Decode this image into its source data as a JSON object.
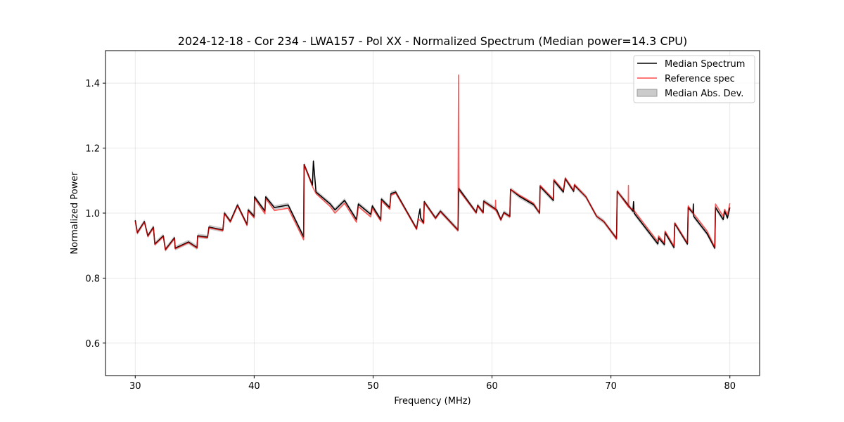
{
  "chart_data": {
    "type": "line",
    "title": "2024-12-18 - Cor 234 - LWA157 - Pol XX - Normalized Spectrum (Median power=14.3 CPU)",
    "xlabel": "Frequency (MHz)",
    "ylabel": "Normalized Power",
    "xlim": [
      27.5,
      82.5
    ],
    "ylim": [
      0.5,
      1.5
    ],
    "xticks": [
      30,
      40,
      50,
      60,
      70,
      80
    ],
    "xtick_labels": [
      "30",
      "40",
      "50",
      "60",
      "70",
      "80"
    ],
    "yticks": [
      0.6,
      0.8,
      1.0,
      1.2,
      1.4
    ],
    "ytick_labels": [
      "0.6",
      "0.8",
      "1.0",
      "1.2",
      "1.4"
    ],
    "grid": true,
    "legend": {
      "placement": "top-right",
      "entries": [
        "Median Spectrum",
        "Reference spec",
        "Median Abs. Dev."
      ]
    },
    "colors": {
      "median": "#000000",
      "reference": "#ff0000",
      "mad": "#a0a0a0"
    },
    "mad_halfwidth": 0.007,
    "series": [
      {
        "name": "Median Spectrum",
        "points": [
          [
            30.0,
            0.978
          ],
          [
            30.18,
            0.94
          ],
          [
            30.77,
            0.974
          ],
          [
            31.06,
            0.93
          ],
          [
            31.53,
            0.957
          ],
          [
            31.65,
            0.905
          ],
          [
            32.36,
            0.93
          ],
          [
            32.54,
            0.888
          ],
          [
            33.3,
            0.924
          ],
          [
            33.36,
            0.892
          ],
          [
            34.48,
            0.911
          ],
          [
            35.2,
            0.894
          ],
          [
            35.25,
            0.93
          ],
          [
            36.08,
            0.926
          ],
          [
            36.2,
            0.957
          ],
          [
            37.37,
            0.948
          ],
          [
            37.5,
            1.0
          ],
          [
            38.0,
            0.975
          ],
          [
            38.6,
            1.025
          ],
          [
            39.4,
            0.965
          ],
          [
            39.5,
            1.01
          ],
          [
            40.0,
            0.99
          ],
          [
            40.03,
            1.05
          ],
          [
            40.9,
            1.006
          ],
          [
            40.97,
            1.05
          ],
          [
            41.7,
            1.017
          ],
          [
            42.86,
            1.025
          ],
          [
            44.16,
            0.927
          ],
          [
            44.2,
            1.15
          ],
          [
            44.9,
            1.086
          ],
          [
            44.98,
            1.16
          ],
          [
            45.2,
            1.065
          ],
          [
            46.4,
            1.028
          ],
          [
            46.8,
            1.01
          ],
          [
            47.6,
            1.039
          ],
          [
            48.6,
            0.98
          ],
          [
            48.76,
            1.028
          ],
          [
            49.8,
            0.996
          ],
          [
            49.94,
            1.022
          ],
          [
            50.65,
            0.98
          ],
          [
            50.7,
            1.043
          ],
          [
            51.4,
            1.017
          ],
          [
            51.5,
            1.06
          ],
          [
            51.9,
            1.065
          ],
          [
            53.66,
            0.952
          ],
          [
            53.8,
            0.985
          ],
          [
            53.95,
            1.013
          ],
          [
            54.0,
            0.985
          ],
          [
            54.25,
            0.97
          ],
          [
            54.3,
            1.035
          ],
          [
            55.25,
            0.985
          ],
          [
            55.66,
            1.006
          ],
          [
            57.14,
            0.948
          ],
          [
            57.2,
            1.076
          ],
          [
            58.67,
            1.002
          ],
          [
            58.79,
            1.024
          ],
          [
            59.26,
            1.002
          ],
          [
            59.3,
            1.037
          ],
          [
            60.4,
            1.01
          ],
          [
            60.74,
            0.98
          ],
          [
            61.0,
            1.002
          ],
          [
            61.5,
            0.99
          ],
          [
            61.56,
            1.073
          ],
          [
            62.3,
            1.052
          ],
          [
            63.5,
            1.026
          ],
          [
            64.0,
            1.0
          ],
          [
            64.04,
            1.082
          ],
          [
            65.16,
            1.039
          ],
          [
            65.2,
            1.1
          ],
          [
            66.0,
            1.065
          ],
          [
            66.16,
            1.106
          ],
          [
            66.87,
            1.067
          ],
          [
            66.93,
            1.086
          ],
          [
            67.9,
            1.05
          ],
          [
            68.8,
            0.99
          ],
          [
            69.4,
            0.974
          ],
          [
            70.47,
            0.922
          ],
          [
            70.53,
            1.067
          ],
          [
            71.85,
            1.006
          ],
          [
            71.9,
            1.035
          ],
          [
            71.95,
            1.0
          ],
          [
            73.95,
            0.905
          ],
          [
            74.0,
            0.924
          ],
          [
            74.5,
            0.903
          ],
          [
            74.55,
            0.94
          ],
          [
            75.3,
            0.894
          ],
          [
            75.37,
            0.968
          ],
          [
            76.43,
            0.905
          ],
          [
            76.5,
            1.017
          ],
          [
            76.9,
            1.0
          ],
          [
            76.93,
            1.028
          ],
          [
            76.96,
            0.99
          ],
          [
            78.08,
            0.937
          ],
          [
            78.73,
            0.892
          ],
          [
            78.79,
            1.017
          ],
          [
            79.44,
            0.98
          ],
          [
            79.56,
            1.006
          ],
          [
            79.8,
            0.985
          ],
          [
            80.0,
            1.017
          ]
        ]
      },
      {
        "name": "Reference spec",
        "points": [
          [
            30.0,
            0.975
          ],
          [
            30.18,
            0.938
          ],
          [
            30.77,
            0.972
          ],
          [
            31.06,
            0.928
          ],
          [
            31.53,
            0.955
          ],
          [
            31.65,
            0.903
          ],
          [
            32.36,
            0.928
          ],
          [
            32.54,
            0.886
          ],
          [
            33.3,
            0.922
          ],
          [
            33.36,
            0.89
          ],
          [
            34.48,
            0.909
          ],
          [
            35.2,
            0.892
          ],
          [
            35.25,
            0.928
          ],
          [
            36.08,
            0.924
          ],
          [
            36.2,
            0.955
          ],
          [
            37.37,
            0.946
          ],
          [
            37.5,
            0.998
          ],
          [
            38.0,
            0.972
          ],
          [
            38.6,
            1.022
          ],
          [
            39.4,
            0.962
          ],
          [
            39.5,
            1.006
          ],
          [
            40.0,
            0.985
          ],
          [
            40.03,
            1.045
          ],
          [
            40.9,
            0.998
          ],
          [
            40.97,
            1.045
          ],
          [
            41.7,
            1.008
          ],
          [
            42.86,
            1.015
          ],
          [
            44.16,
            0.918
          ],
          [
            44.2,
            1.148
          ],
          [
            44.9,
            1.082
          ],
          [
            45.2,
            1.06
          ],
          [
            46.4,
            1.02
          ],
          [
            46.8,
            1.0
          ],
          [
            47.6,
            1.03
          ],
          [
            48.6,
            0.972
          ],
          [
            48.76,
            1.02
          ],
          [
            49.8,
            0.988
          ],
          [
            49.94,
            1.015
          ],
          [
            50.65,
            0.975
          ],
          [
            50.7,
            1.038
          ],
          [
            51.4,
            1.012
          ],
          [
            51.5,
            1.055
          ],
          [
            51.9,
            1.062
          ],
          [
            53.66,
            0.95
          ],
          [
            53.8,
            0.982
          ],
          [
            54.25,
            0.968
          ],
          [
            54.3,
            1.033
          ],
          [
            55.25,
            0.983
          ],
          [
            55.66,
            1.004
          ],
          [
            57.14,
            0.946
          ],
          [
            57.18,
            1.425
          ],
          [
            57.22,
            1.07
          ],
          [
            58.67,
            1.0
          ],
          [
            58.79,
            1.022
          ],
          [
            59.26,
            1.0
          ],
          [
            59.3,
            1.035
          ],
          [
            60.28,
            1.01
          ],
          [
            60.3,
            1.04
          ],
          [
            60.32,
            1.008
          ],
          [
            60.74,
            0.978
          ],
          [
            61.0,
            1.0
          ],
          [
            61.5,
            0.988
          ],
          [
            61.56,
            1.073
          ],
          [
            62.3,
            1.055
          ],
          [
            63.5,
            1.03
          ],
          [
            64.0,
            1.0
          ],
          [
            64.04,
            1.085
          ],
          [
            65.16,
            1.043
          ],
          [
            65.2,
            1.104
          ],
          [
            66.0,
            1.07
          ],
          [
            66.16,
            1.108
          ],
          [
            66.87,
            1.07
          ],
          [
            66.93,
            1.088
          ],
          [
            67.9,
            1.05
          ],
          [
            68.8,
            0.99
          ],
          [
            69.4,
            0.974
          ],
          [
            70.47,
            0.92
          ],
          [
            70.53,
            1.068
          ],
          [
            71.45,
            1.02
          ],
          [
            71.47,
            1.085
          ],
          [
            71.49,
            1.018
          ],
          [
            71.9,
            1.01
          ],
          [
            73.95,
            0.912
          ],
          [
            74.0,
            0.93
          ],
          [
            74.5,
            0.908
          ],
          [
            74.55,
            0.945
          ],
          [
            75.3,
            0.898
          ],
          [
            75.37,
            0.97
          ],
          [
            76.43,
            0.908
          ],
          [
            76.5,
            1.022
          ],
          [
            76.96,
            0.998
          ],
          [
            78.08,
            0.945
          ],
          [
            78.73,
            0.895
          ],
          [
            78.79,
            1.028
          ],
          [
            79.44,
            0.99
          ],
          [
            79.56,
            1.012
          ],
          [
            79.8,
            0.995
          ],
          [
            80.0,
            1.03
          ]
        ]
      }
    ]
  }
}
